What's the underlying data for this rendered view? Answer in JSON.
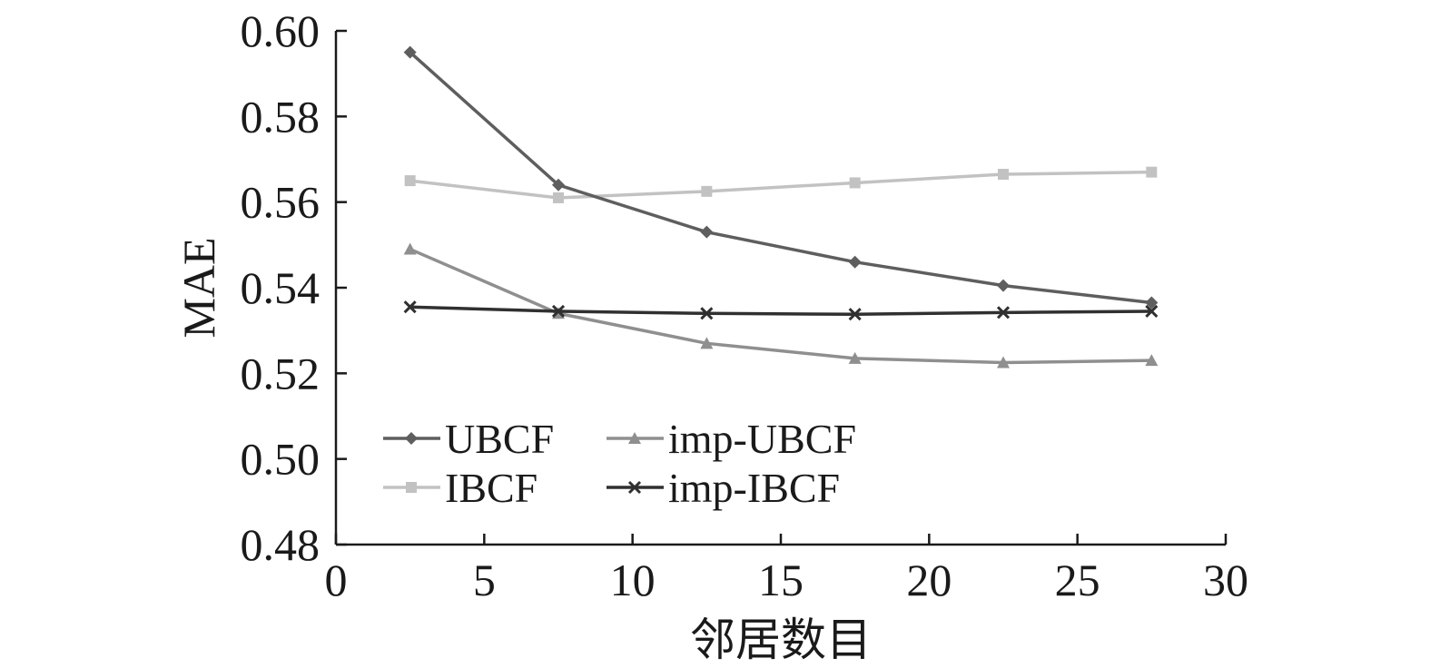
{
  "chart_data": {
    "type": "line",
    "title": "",
    "xlabel": "邻居数目",
    "ylabel": "MAE",
    "xlim": [
      0,
      30
    ],
    "ylim": [
      0.48,
      0.6
    ],
    "xticks": [
      0,
      5,
      10,
      15,
      20,
      25,
      30
    ],
    "yticks": [
      0.48,
      0.5,
      0.52,
      0.54,
      0.56,
      0.58,
      0.6
    ],
    "xtick_labels": [
      "0",
      "5",
      "10",
      "15",
      "20",
      "25",
      "30"
    ],
    "ytick_labels": [
      "0.48",
      "0.50",
      "0.52",
      "0.54",
      "0.56",
      "0.58",
      "0.60"
    ],
    "grid": false,
    "legend_position": "lower-left",
    "x": [
      2.5,
      7.5,
      12.5,
      17.5,
      22.5,
      27.5
    ],
    "series": [
      {
        "name": "UBCF",
        "marker": "diamond",
        "color": "#5e5e5e",
        "values": [
          0.595,
          0.564,
          0.553,
          0.546,
          0.5405,
          0.5365
        ]
      },
      {
        "name": "IBCF",
        "marker": "square",
        "color": "#c2c2c2",
        "values": [
          0.565,
          0.561,
          0.5625,
          0.5645,
          0.5665,
          0.567
        ]
      },
      {
        "name": "imp-UBCF",
        "marker": "triangle",
        "color": "#8f8f8f",
        "values": [
          0.549,
          0.534,
          0.527,
          0.5235,
          0.5225,
          0.523
        ]
      },
      {
        "name": "imp-IBCF",
        "marker": "x",
        "color": "#303030",
        "values": [
          0.5355,
          0.5345,
          0.534,
          0.5338,
          0.5342,
          0.5345
        ]
      }
    ]
  }
}
